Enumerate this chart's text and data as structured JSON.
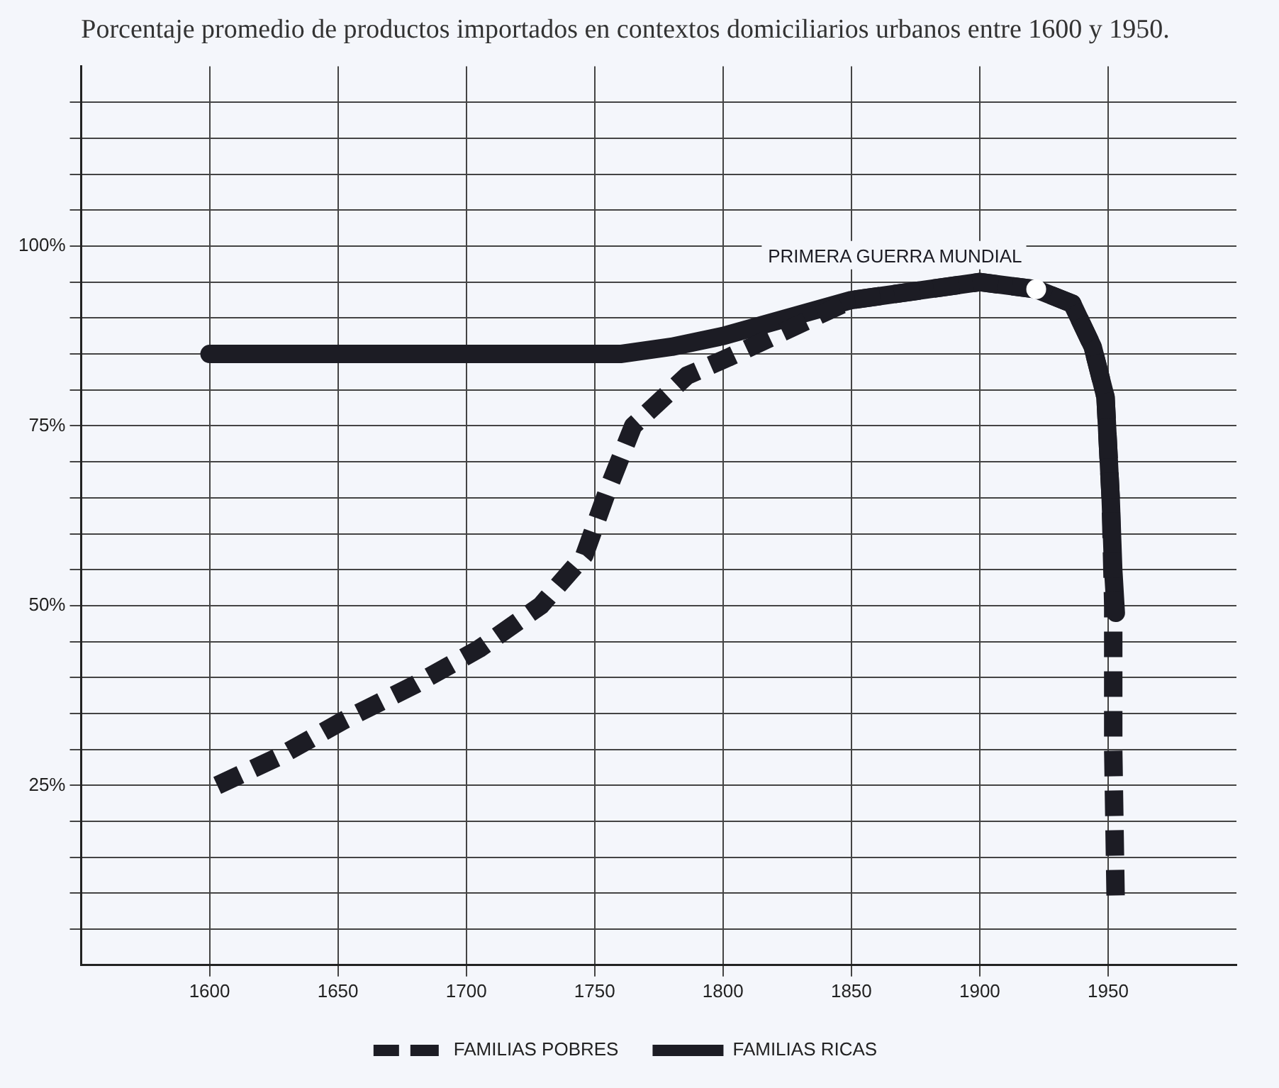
{
  "chart_data": {
    "type": "line",
    "title": "Porcentaje promedio de productos importados en contextos domiciliarios urbanos entre 1600 y 1950.",
    "xlim": [
      1550,
      2000
    ],
    "xticks": [
      1600,
      1650,
      1700,
      1750,
      1800,
      1850,
      1900,
      1950
    ],
    "ylim": [
      0,
      125
    ],
    "yticks": [
      {
        "value": 5,
        "label": null
      },
      {
        "value": 10,
        "label": null
      },
      {
        "value": 15,
        "label": null
      },
      {
        "value": 20,
        "label": null
      },
      {
        "value": 25,
        "label": "25%"
      },
      {
        "value": 30,
        "label": null
      },
      {
        "value": 35,
        "label": null
      },
      {
        "value": 40,
        "label": null
      },
      {
        "value": 45,
        "label": null
      },
      {
        "value": 50,
        "label": "50%"
      },
      {
        "value": 55,
        "label": null
      },
      {
        "value": 60,
        "label": null
      },
      {
        "value": 65,
        "label": null
      },
      {
        "value": 70,
        "label": null
      },
      {
        "value": 75,
        "label": "75%"
      },
      {
        "value": 80,
        "label": null
      },
      {
        "value": 85,
        "label": null
      },
      {
        "value": 90,
        "label": null
      },
      {
        "value": 95,
        "label": null
      },
      {
        "value": 100,
        "label": "100%"
      },
      {
        "value": 105,
        "label": null
      },
      {
        "value": 110,
        "label": null
      },
      {
        "value": 115,
        "label": null
      },
      {
        "value": 120,
        "label": null
      }
    ],
    "grid": true,
    "legend": "bottom",
    "marker": "none",
    "series": [
      {
        "name": "FAMILIAS POBRES",
        "color": "#1c1c24",
        "line_style": "dashed",
        "x": [
          1603,
          1627,
          1652,
          1680,
          1705,
          1729,
          1746,
          1755,
          1765,
          1786,
          1802,
          1850,
          1900,
          1922,
          1936,
          1944,
          1949,
          1951,
          1952,
          1952,
          1953
        ],
        "values": [
          25,
          29,
          34,
          39,
          44,
          50,
          57,
          66,
          75,
          82,
          84.5,
          92.5,
          95,
          94,
          92,
          86,
          79,
          65,
          50,
          30,
          8
        ]
      },
      {
        "name": "FAMILIAS RICAS",
        "color": "#1c1c24",
        "line_style": "solid",
        "x": [
          1600,
          1760,
          1780,
          1800,
          1850,
          1900,
          1922,
          1936,
          1944,
          1949,
          1951,
          1952,
          1953
        ],
        "values": [
          85,
          85,
          86,
          87.5,
          92.5,
          95,
          94,
          92,
          86,
          79,
          65,
          55,
          49
        ]
      }
    ],
    "annotations": [
      {
        "text": "PRIMERA GUERRA MUNDIAL",
        "x": 1922,
        "y": 94
      }
    ]
  }
}
